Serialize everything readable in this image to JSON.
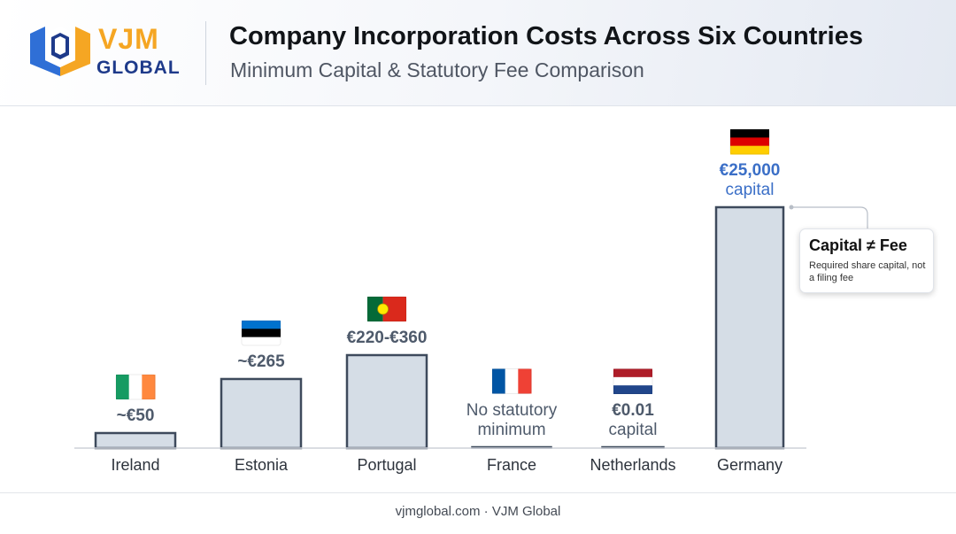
{
  "brand": {
    "name_top": "VJM",
    "name_bottom": "GLOBAL",
    "colors": {
      "orange": "#f5a623",
      "blue": "#1e3a8a"
    }
  },
  "header": {
    "title": "Company Incorporation Costs Across Six Countries",
    "subtitle": "Minimum Capital & Statutory Fee Comparison"
  },
  "chart_data": {
    "type": "bar",
    "title": "Company Incorporation Costs Across Six Countries",
    "subtitle": "Minimum Capital & Statutory Fee Comparison",
    "xlabel": "",
    "ylabel": "",
    "grid": false,
    "categories": [
      "Ireland",
      "Estonia",
      "Portugal",
      "France",
      "Netherlands",
      "Germany"
    ],
    "values": [
      50,
      265,
      360,
      0,
      0.01,
      25000
    ],
    "value_labels": [
      {
        "main": "~€50",
        "sub": ""
      },
      {
        "main": "~€265",
        "sub": ""
      },
      {
        "main": "€220-€360",
        "sub": ""
      },
      {
        "main": "No statutory",
        "sub": "minimum"
      },
      {
        "main": "€0.01",
        "sub": "capital"
      },
      {
        "main": "€25,000",
        "sub": "capital"
      }
    ],
    "flags": [
      "ireland-flag",
      "estonia-flag",
      "portugal-flag",
      "france-flag",
      "netherlands-flag",
      "germany-flag"
    ],
    "colors": {
      "bar_fill": "#d5dde6",
      "bar_stroke": "#3e4a5c",
      "highlight_label": "#3b6fc7",
      "label": "#4e5a6b"
    },
    "annotation": {
      "title": "Capital ≠ Fee",
      "text": "Required share capital, not a filing fee",
      "target": "Germany"
    }
  },
  "footer": {
    "text": "vjmglobal.com · VJM Global"
  }
}
